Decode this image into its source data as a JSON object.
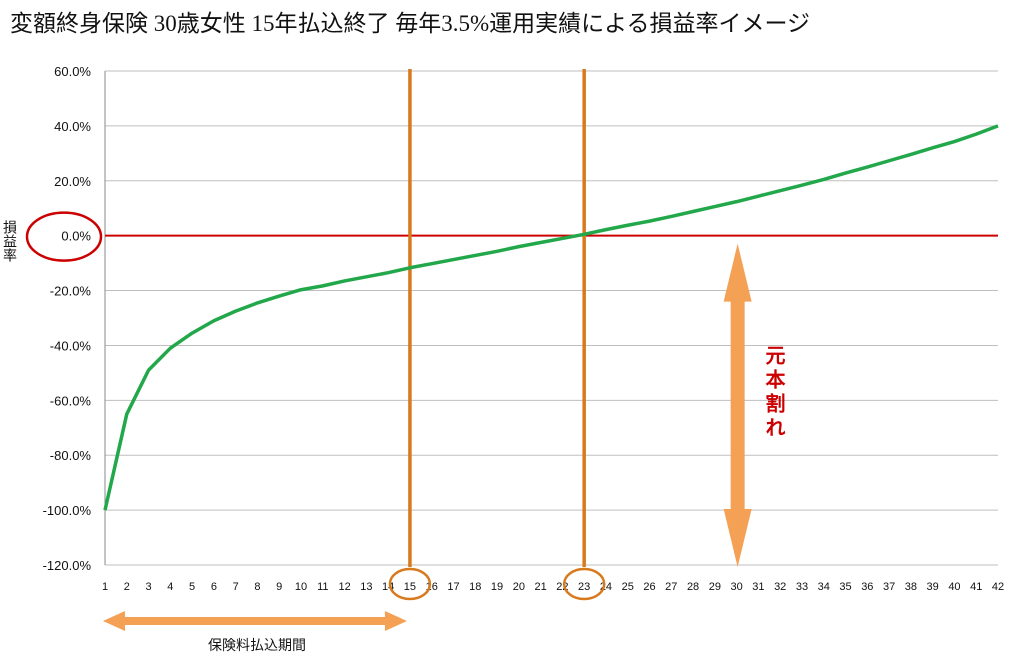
{
  "chart_data": {
    "type": "line",
    "title": "変額終身保険 30歳女性 15年払込終了 毎年3.5%運用実績による損益率イメージ",
    "ylabel": "損益率",
    "xlabel": "",
    "ylim": [
      -1.2,
      0.6
    ],
    "y_ticks": [
      "60.0%",
      "40.0%",
      "20.0%",
      "0.0%",
      "-20.0%",
      "-40.0%",
      "-60.0%",
      "-80.0%",
      "-100.0%",
      "-120.0%"
    ],
    "y_tick_values": [
      0.6,
      0.4,
      0.2,
      0,
      -0.2,
      -0.4,
      -0.6,
      -0.8,
      -1.0,
      -1.2
    ],
    "grid": true,
    "legend": "none",
    "x": [
      1,
      2,
      3,
      4,
      5,
      6,
      7,
      8,
      9,
      10,
      11,
      12,
      13,
      14,
      15,
      16,
      17,
      18,
      19,
      20,
      21,
      22,
      23,
      24,
      25,
      26,
      27,
      28,
      29,
      30,
      31,
      32,
      33,
      34,
      35,
      36,
      37,
      38,
      39,
      40,
      41,
      42
    ],
    "x_ticks": [
      "1",
      "2",
      "3",
      "4",
      "5",
      "6",
      "7",
      "8",
      "9",
      "10",
      "11",
      "12",
      "13",
      "14",
      "15",
      "16",
      "17",
      "18",
      "19",
      "20",
      "21",
      "22",
      "23",
      "24",
      "25",
      "26",
      "27",
      "28",
      "29",
      "30",
      "31",
      "32",
      "33",
      "34",
      "35",
      "36",
      "37",
      "38",
      "39",
      "40",
      "41",
      "42"
    ],
    "series": [
      {
        "values": [
          -1.0,
          -0.65,
          -0.49,
          -0.41,
          -0.355,
          -0.31,
          -0.275,
          -0.245,
          -0.22,
          -0.197,
          -0.183,
          -0.165,
          -0.15,
          -0.135,
          -0.117,
          -0.102,
          -0.087,
          -0.072,
          -0.057,
          -0.04,
          -0.025,
          -0.01,
          0.005,
          0.022,
          0.038,
          0.053,
          0.07,
          0.088,
          0.106,
          0.124,
          0.144,
          0.164,
          0.184,
          0.205,
          0.228,
          0.25,
          0.273,
          0.296,
          0.32,
          0.343,
          0.37,
          0.4
        ]
      }
    ],
    "colors": {
      "line": "#22a84a",
      "zero_line": "#cc0000",
      "vlines": "#d77a1e",
      "arrows": "#f4a055",
      "circles_zero": "#cc0000",
      "circles_x": "#d77a1e",
      "grid": "#bfbfbf"
    },
    "vlines_at": [
      15,
      23
    ],
    "circled_x_ticks": [
      15,
      23
    ],
    "annotations": {
      "loss_label": "元本割れ",
      "loss_arrow_x": 30,
      "loss_arrow_from": 0,
      "loss_arrow_to": -1.2,
      "payment_period_label": "保険料払込期間",
      "payment_arrow_from": 1,
      "payment_arrow_to": 15
    }
  }
}
